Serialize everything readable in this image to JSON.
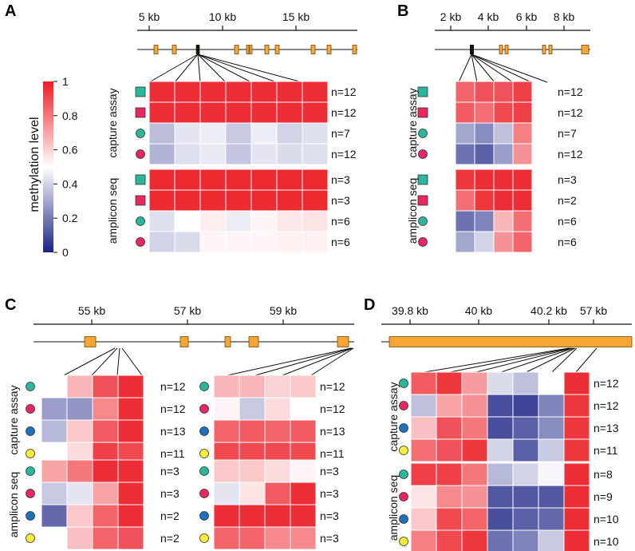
{
  "colors": {
    "high": "#ed1c24",
    "mid": "#ffffff",
    "low": "#1b2383",
    "exon": "#f7a533",
    "teal": "#2bb59a",
    "pink": "#e8265f",
    "blue": "#1f6fbf",
    "yellow": "#f7ee3a"
  },
  "legend": {
    "title": "methylation level",
    "ticks": [
      "1",
      "0.8",
      "0.6",
      "0.4",
      "0.2",
      "0"
    ]
  },
  "chart_data": [
    {
      "panel": "A",
      "type": "heatmap",
      "axis_ticks": [
        "5 kb",
        "10 kb",
        "15 kb"
      ],
      "groups": [
        "capture assay",
        "amplicon seq"
      ],
      "rows": [
        {
          "group": 0,
          "marker": "teal-square",
          "n": "n=12",
          "values": [
            0.96,
            0.96,
            0.96,
            0.96,
            0.96,
            0.96,
            0.96
          ]
        },
        {
          "group": 0,
          "marker": "pink-square",
          "n": "n=12",
          "values": [
            0.96,
            0.96,
            0.96,
            0.96,
            0.96,
            0.96,
            0.96
          ]
        },
        {
          "group": 0,
          "marker": "teal-circle",
          "n": "n=7",
          "values": [
            0.35,
            0.44,
            0.46,
            0.38,
            0.46,
            0.4,
            0.43
          ]
        },
        {
          "group": 0,
          "marker": "pink-circle",
          "n": "n=12",
          "values": [
            0.33,
            0.43,
            0.45,
            0.37,
            0.44,
            0.42,
            0.43
          ]
        },
        {
          "group": 1,
          "marker": "teal-square",
          "n": "n=3",
          "values": [
            0.97,
            0.97,
            0.97,
            0.97,
            0.97,
            0.97,
            0.97
          ]
        },
        {
          "group": 1,
          "marker": "pink-square",
          "n": "n=3",
          "values": [
            0.97,
            0.97,
            0.97,
            0.97,
            0.97,
            0.97,
            0.97
          ]
        },
        {
          "group": 1,
          "marker": "teal-circle",
          "n": "n=6",
          "values": [
            0.43,
            0.5,
            0.54,
            0.46,
            0.52,
            0.55,
            0.56
          ]
        },
        {
          "group": 1,
          "marker": "pink-circle",
          "n": "n=6",
          "values": [
            0.4,
            0.42,
            0.52,
            0.52,
            0.52,
            0.53,
            0.53
          ]
        }
      ]
    },
    {
      "panel": "B",
      "type": "heatmap",
      "axis_ticks": [
        "2 kb",
        "4 kb",
        "6 kb",
        "8 kb"
      ],
      "groups": [
        "capture assay",
        "amplicon seq"
      ],
      "rows": [
        {
          "group": 0,
          "marker": "teal-square",
          "n": "n=12",
          "values": [
            0.84,
            0.88,
            0.88,
            0.92
          ]
        },
        {
          "group": 0,
          "marker": "pink-square",
          "n": "n=12",
          "values": [
            0.86,
            0.82,
            0.9,
            0.92
          ]
        },
        {
          "group": 0,
          "marker": "teal-circle",
          "n": "n=7",
          "values": [
            0.3,
            0.24,
            0.36,
            0.78
          ]
        },
        {
          "group": 0,
          "marker": "pink-circle",
          "n": "n=12",
          "values": [
            0.18,
            0.14,
            0.28,
            0.74
          ]
        },
        {
          "group": 1,
          "marker": "teal-square",
          "n": "n=3",
          "values": [
            0.94,
            0.96,
            0.96,
            0.96
          ]
        },
        {
          "group": 1,
          "marker": "pink-square",
          "n": "n=2",
          "values": [
            0.82,
            0.94,
            0.96,
            0.96
          ]
        },
        {
          "group": 1,
          "marker": "teal-circle",
          "n": "n=6",
          "values": [
            0.18,
            0.22,
            0.66,
            0.82
          ]
        },
        {
          "group": 1,
          "marker": "pink-circle",
          "n": "n=6",
          "values": [
            0.3,
            0.4,
            0.74,
            0.84
          ]
        }
      ]
    },
    {
      "panel": "C",
      "type": "heatmap",
      "axis_ticks": [
        "55 kb",
        "57 kb",
        "59 kb"
      ],
      "groups": [
        "capture assay",
        "amplicon seq"
      ],
      "rows": [
        {
          "group": 0,
          "marker": "teal-circle",
          "n": "n=12",
          "values": [
            0.5,
            0.66,
            0.88,
            0.96
          ],
          "values_right": [
            0.66,
            0.66,
            0.6,
            0.62
          ],
          "n_right": "n=12"
        },
        {
          "group": 0,
          "marker": "pink-circle",
          "n": "n=12",
          "values": [
            0.28,
            0.26,
            0.76,
            0.96
          ],
          "values_right": [
            0.52,
            0.38,
            0.58,
            0.5
          ],
          "n_right": "n=12"
        },
        {
          "group": 0,
          "marker": "blue-circle",
          "n": "n=13",
          "values": [
            0.34,
            0.62,
            0.86,
            0.96
          ],
          "values_right": [
            0.84,
            0.86,
            0.84,
            0.86
          ],
          "n_right": "n=13"
        },
        {
          "group": 0,
          "marker": "yellow-circle",
          "n": "n=11",
          "values": [
            0.5,
            0.58,
            0.92,
            0.9
          ],
          "values_right": [
            0.9,
            0.9,
            0.9,
            0.9
          ],
          "n_right": "n=11"
        },
        {
          "group": 1,
          "marker": "teal-circle",
          "n": "n=3",
          "values": [
            0.7,
            0.8,
            0.96,
            0.96
          ],
          "values_right": [
            0.62,
            0.62,
            0.58,
            0.52
          ],
          "n_right": "n=3"
        },
        {
          "group": 1,
          "marker": "pink-circle",
          "n": "n=3",
          "values": [
            0.38,
            0.44,
            0.7,
            0.96
          ],
          "values_right": [
            0.44,
            0.56,
            0.86,
            0.96
          ],
          "n_right": "n=3"
        },
        {
          "group": 1,
          "marker": "blue-circle",
          "n": "n=2",
          "values": [
            0.16,
            0.62,
            0.84,
            0.96
          ],
          "values_right": [
            0.96,
            0.96,
            0.96,
            0.96
          ],
          "n_right": "n=3"
        },
        {
          "group": 1,
          "marker": "yellow-circle",
          "n": "n=2",
          "values": [
            0.5,
            0.64,
            0.84,
            0.88
          ],
          "values_right": [
            0.84,
            0.84,
            0.76,
            0.76
          ],
          "n_right": "n=3"
        }
      ]
    },
    {
      "panel": "D",
      "type": "heatmap",
      "axis_ticks": [
        "39.8 kb",
        "40 kb",
        "40.2 kb",
        "57 kb"
      ],
      "groups": [
        "capture assay",
        "amplicon seq"
      ],
      "rows": [
        {
          "group": 0,
          "marker": "teal-circle",
          "n": "n=12",
          "values": [
            0.86,
            0.94,
            0.72,
            0.42,
            0.36,
            0.5,
            0.96
          ]
        },
        {
          "group": 0,
          "marker": "pink-circle",
          "n": "n=12",
          "values": [
            0.36,
            0.7,
            0.74,
            0.1,
            0.08,
            0.22,
            0.94
          ]
        },
        {
          "group": 0,
          "marker": "blue-circle",
          "n": "n=13",
          "values": [
            0.64,
            0.88,
            0.8,
            0.1,
            0.14,
            0.24,
            0.94
          ]
        },
        {
          "group": 0,
          "marker": "yellow-circle",
          "n": "n=11",
          "values": [
            0.82,
            0.88,
            0.94,
            0.4,
            0.14,
            0.38,
            0.94
          ]
        },
        {
          "group": 1,
          "marker": "teal-circle",
          "n": "n=8",
          "values": [
            0.92,
            0.92,
            0.8,
            0.34,
            0.4,
            0.48,
            0.96
          ]
        },
        {
          "group": 1,
          "marker": "pink-circle",
          "n": "n=9",
          "values": [
            0.56,
            0.76,
            0.74,
            0.12,
            0.12,
            0.12,
            0.96
          ]
        },
        {
          "group": 1,
          "marker": "blue-circle",
          "n": "n=10",
          "values": [
            0.62,
            0.9,
            0.84,
            0.1,
            0.14,
            0.16,
            0.96
          ]
        },
        {
          "group": 1,
          "marker": "yellow-circle",
          "n": "n=10",
          "values": [
            0.78,
            0.9,
            0.94,
            0.18,
            0.22,
            0.38,
            0.96
          ]
        }
      ]
    }
  ]
}
